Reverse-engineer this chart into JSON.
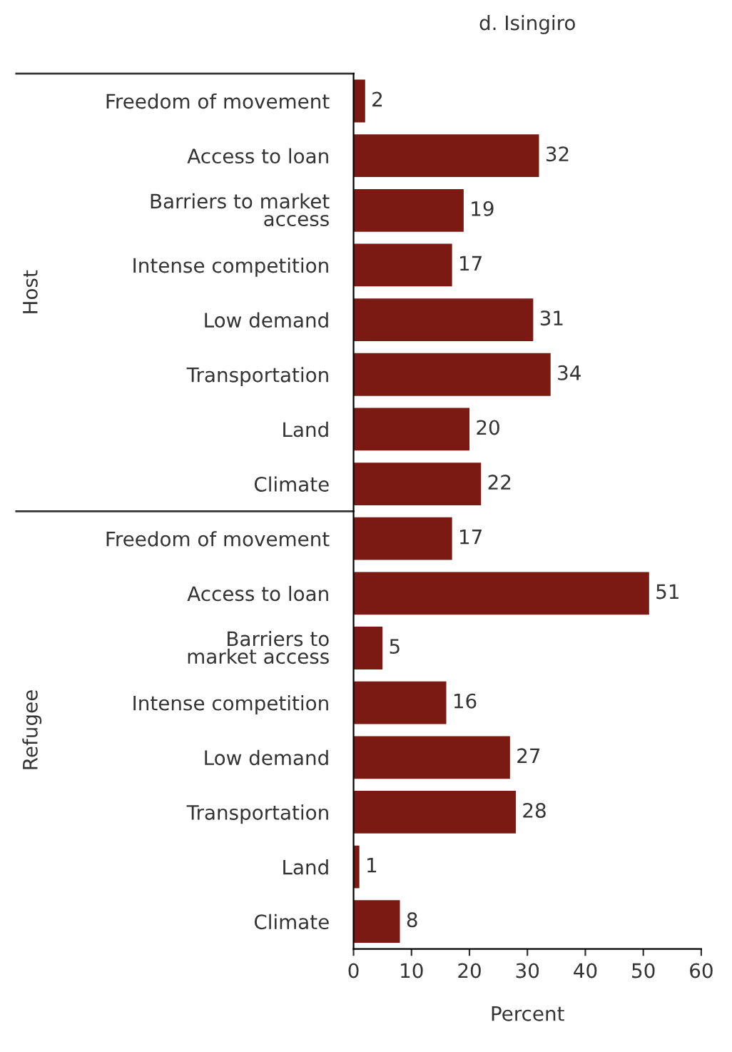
{
  "chart_data": {
    "type": "bar",
    "orientation": "horizontal",
    "title": "d. Isingiro",
    "xlabel": "Percent",
    "categories": [
      "Freedom of movement",
      "Access to loan",
      "Barriers to market\naccess",
      "Intense competition",
      "Low demand",
      "Transportation",
      "Land",
      "Climate",
      "Freedom of movement",
      "Access to loan",
      "Barriers to\nmarket access",
      "Intense competition",
      "Low demand",
      "Transportation",
      "Land",
      "Climate"
    ],
    "values": [
      2,
      32,
      19,
      17,
      31,
      34,
      20,
      22,
      17,
      51,
      5,
      16,
      27,
      28,
      1,
      8
    ],
    "color": "#7a1a12",
    "xlim": [
      0,
      60
    ],
    "xticks": [
      0,
      10,
      20,
      30,
      40,
      50,
      60
    ],
    "data_labels": true,
    "annotations": [
      "Host",
      "Refugee"
    ]
  }
}
